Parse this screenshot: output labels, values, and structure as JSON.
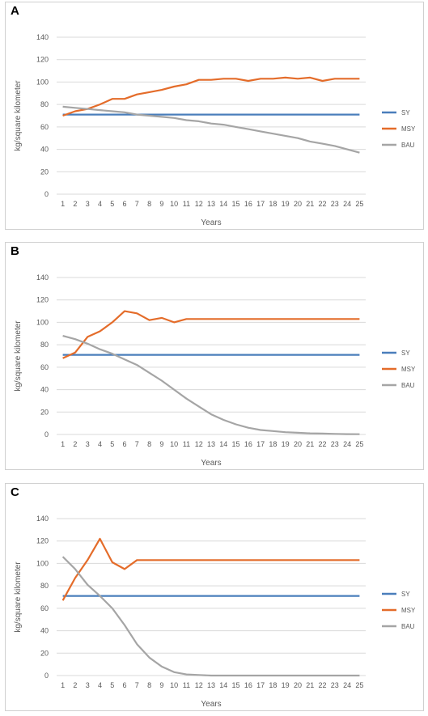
{
  "chart_data": [
    {
      "panel": "A",
      "type": "line",
      "xlabel": "Years",
      "ylabel": "kg/square kilometer",
      "ylim": [
        0,
        140
      ],
      "yticks": [
        0,
        20,
        40,
        60,
        80,
        100,
        120,
        140
      ],
      "grid": true,
      "legend_position": "right",
      "categories": [
        1,
        2,
        3,
        4,
        5,
        6,
        7,
        8,
        9,
        10,
        11,
        12,
        13,
        14,
        15,
        16,
        17,
        18,
        19,
        20,
        21,
        22,
        23,
        24,
        25
      ],
      "series": [
        {
          "name": "SY",
          "color": "#4a7ebb",
          "values": [
            71,
            71,
            71,
            71,
            71,
            71,
            71,
            71,
            71,
            71,
            71,
            71,
            71,
            71,
            71,
            71,
            71,
            71,
            71,
            71,
            71,
            71,
            71,
            71,
            71
          ]
        },
        {
          "name": "MSY",
          "color": "#e46c2a",
          "values": [
            70,
            74,
            76,
            80,
            85,
            85,
            89,
            91,
            93,
            96,
            98,
            102,
            102,
            103,
            103,
            101,
            103,
            103,
            104,
            103,
            104,
            101,
            103,
            103,
            103
          ]
        },
        {
          "name": "BAU",
          "color": "#a5a5a5",
          "values": [
            78,
            77,
            76,
            75,
            74,
            73,
            71,
            70,
            69,
            68,
            66,
            65,
            63,
            62,
            60,
            58,
            56,
            54,
            52,
            50,
            47,
            45,
            43,
            40,
            37
          ]
        }
      ]
    },
    {
      "panel": "B",
      "type": "line",
      "xlabel": "Years",
      "ylabel": "kg/square kilometer",
      "ylim": [
        0,
        140
      ],
      "yticks": [
        0,
        20,
        40,
        60,
        80,
        100,
        120,
        140
      ],
      "grid": true,
      "legend_position": "right",
      "categories": [
        1,
        2,
        3,
        4,
        5,
        6,
        7,
        8,
        9,
        10,
        11,
        12,
        13,
        14,
        15,
        16,
        17,
        18,
        19,
        20,
        21,
        22,
        23,
        24,
        25
      ],
      "series": [
        {
          "name": "SY",
          "color": "#4a7ebb",
          "values": [
            71,
            71,
            71,
            71,
            71,
            71,
            71,
            71,
            71,
            71,
            71,
            71,
            71,
            71,
            71,
            71,
            71,
            71,
            71,
            71,
            71,
            71,
            71,
            71,
            71
          ]
        },
        {
          "name": "MSY",
          "color": "#e46c2a",
          "values": [
            68,
            73,
            87,
            92,
            100,
            110,
            108,
            102,
            104,
            100,
            103,
            103,
            103,
            103,
            103,
            103,
            103,
            103,
            103,
            103,
            103,
            103,
            103,
            103,
            103
          ]
        },
        {
          "name": "BAU",
          "color": "#a5a5a5",
          "values": [
            88,
            85,
            81,
            76,
            72,
            67,
            62,
            55,
            48,
            40,
            32,
            25,
            18,
            13,
            9,
            6,
            4,
            3,
            2,
            1.5,
            1,
            0.8,
            0.5,
            0.3,
            0.2
          ]
        }
      ]
    },
    {
      "panel": "C",
      "type": "line",
      "xlabel": "Years",
      "ylabel": "kg/square kilometer",
      "ylim": [
        0,
        140
      ],
      "yticks": [
        0,
        20,
        40,
        60,
        80,
        100,
        120,
        140
      ],
      "grid": true,
      "legend_position": "right",
      "categories": [
        1,
        2,
        3,
        4,
        5,
        6,
        7,
        8,
        9,
        10,
        11,
        12,
        13,
        14,
        15,
        16,
        17,
        18,
        19,
        20,
        21,
        22,
        23,
        24,
        25
      ],
      "series": [
        {
          "name": "SY",
          "color": "#4a7ebb",
          "values": [
            71,
            71,
            71,
            71,
            71,
            71,
            71,
            71,
            71,
            71,
            71,
            71,
            71,
            71,
            71,
            71,
            71,
            71,
            71,
            71,
            71,
            71,
            71,
            71,
            71
          ]
        },
        {
          "name": "MSY",
          "color": "#e46c2a",
          "values": [
            67,
            87,
            103,
            122,
            101,
            95,
            103,
            103,
            103,
            103,
            103,
            103,
            103,
            103,
            103,
            103,
            103,
            103,
            103,
            103,
            103,
            103,
            103,
            103,
            103
          ]
        },
        {
          "name": "BAU",
          "color": "#a5a5a5",
          "values": [
            106,
            95,
            81,
            71,
            60,
            45,
            28,
            16,
            8,
            3,
            1,
            0.5,
            0,
            0,
            0,
            0,
            0,
            0,
            0,
            0,
            0,
            0,
            0,
            0,
            0
          ]
        }
      ]
    }
  ]
}
